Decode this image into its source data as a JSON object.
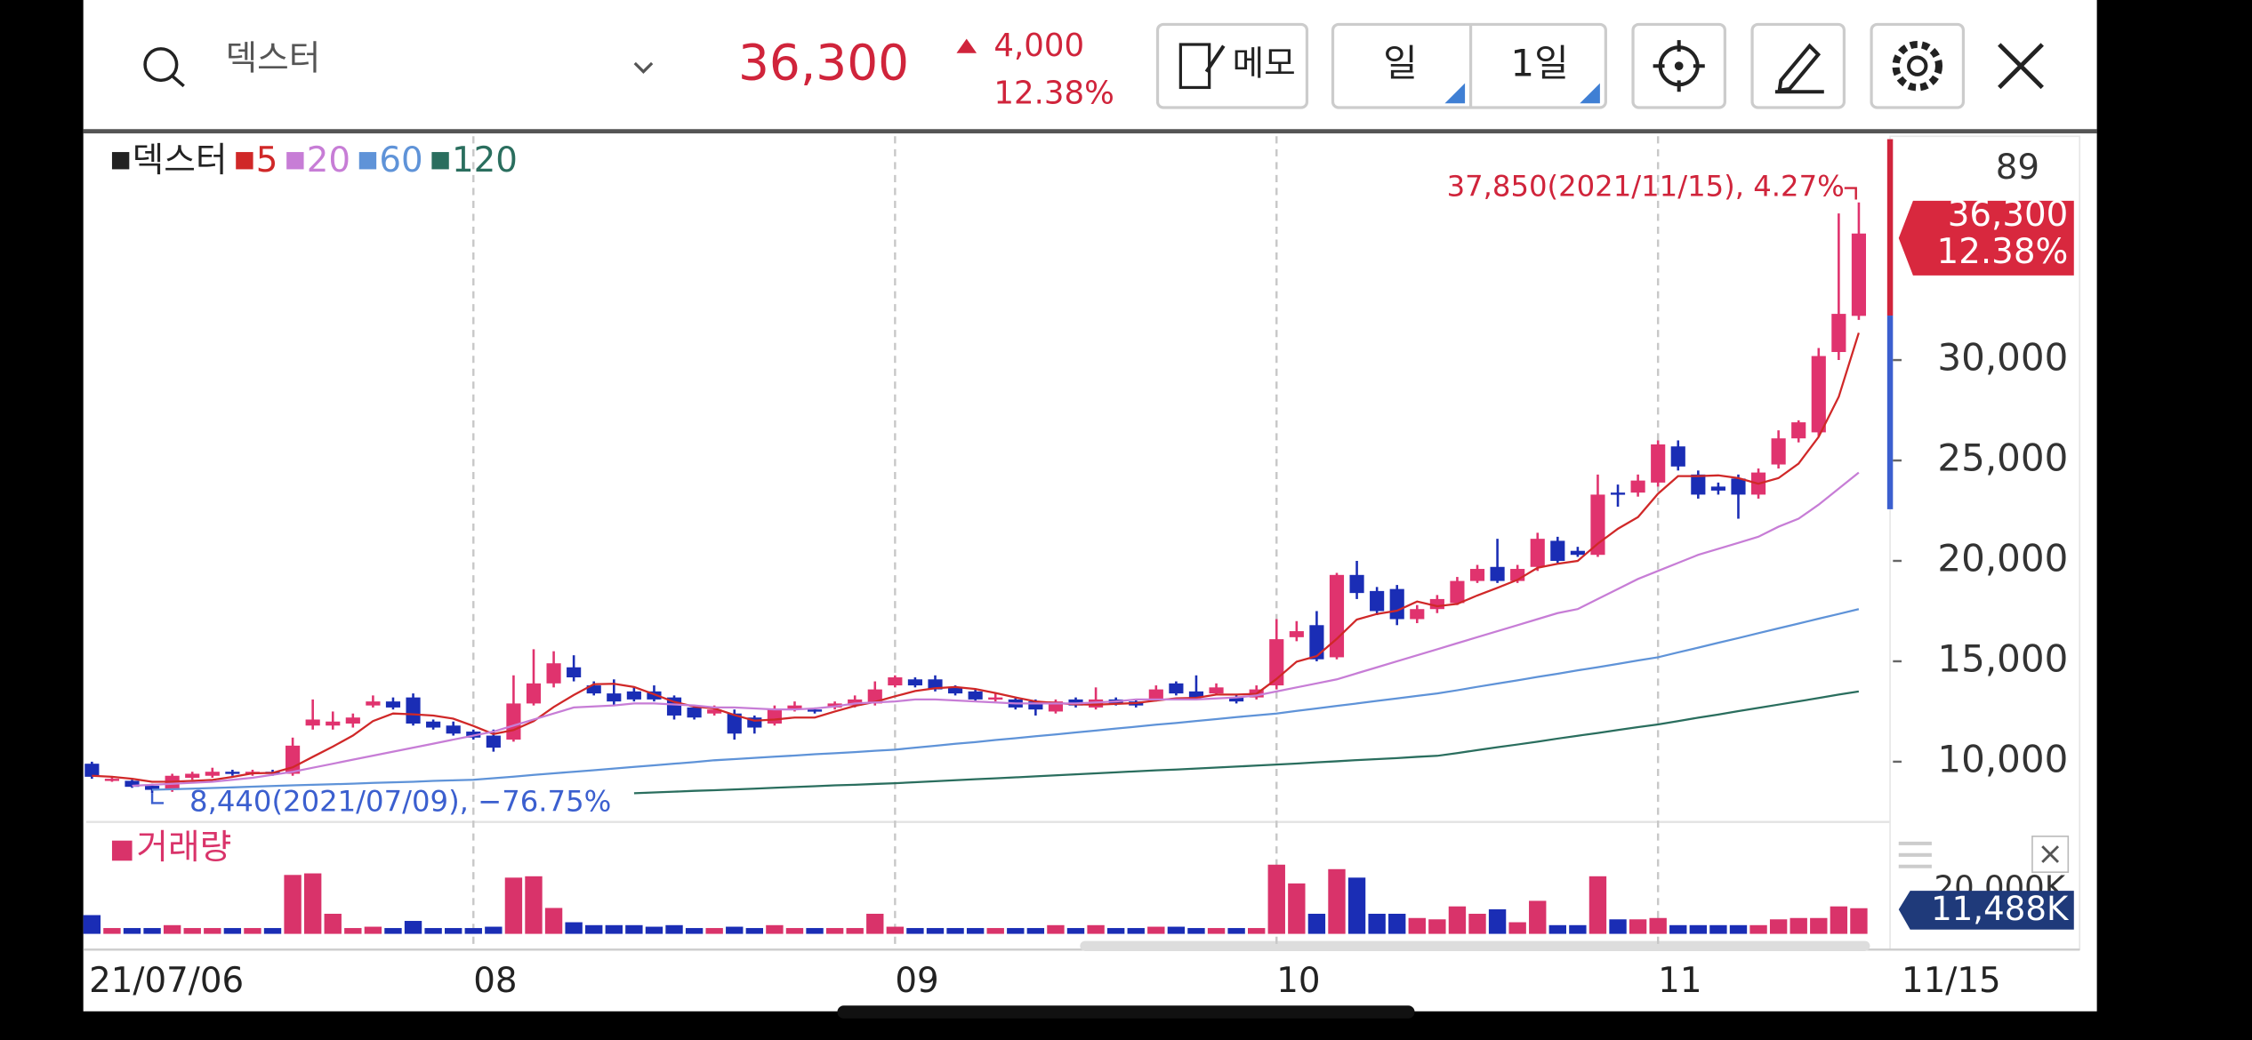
{
  "header": {
    "search": "덱스터",
    "price": "36,300",
    "change": "4,000",
    "change_pct": "12.38%",
    "memo": "메모",
    "period": "일",
    "interval": "1일"
  },
  "chart_data": {
    "type": "candlestick",
    "name": "덱스터",
    "color": "#222222",
    "up_color": "#e0336e",
    "down_color": "#1a2db5",
    "categories": [
      "21/07/06",
      null,
      null,
      null,
      null,
      null,
      null,
      null,
      null,
      null,
      null,
      null,
      null,
      null,
      null,
      null,
      null,
      null,
      null,
      "08",
      null,
      null,
      null,
      null,
      null,
      null,
      null,
      null,
      null,
      null,
      null,
      null,
      null,
      null,
      null,
      null,
      null,
      null,
      null,
      null,
      "09",
      null,
      null,
      null,
      null,
      null,
      null,
      null,
      null,
      null,
      null,
      null,
      null,
      null,
      null,
      null,
      null,
      null,
      null,
      "10",
      null,
      null,
      null,
      null,
      null,
      null,
      null,
      null,
      null,
      null,
      null,
      null,
      null,
      null,
      null,
      null,
      null,
      null,
      "11",
      null,
      null,
      null,
      null,
      null,
      null,
      null,
      null,
      null,
      "11/15"
    ],
    "open": [
      9900,
      9050,
      9050,
      8800,
      8600,
      9200,
      9300,
      9500,
      9400,
      9500,
      9400,
      11800,
      11800,
      11900,
      12800,
      13000,
      13200,
      12000,
      11800,
      11500,
      11300,
      11100,
      12900,
      13900,
      14700,
      13800,
      13400,
      13500,
      13500,
      13200,
      12700,
      12400,
      12400,
      12200,
      11900,
      12600,
      12600,
      12700,
      12800,
      12900,
      13800,
      14100,
      14100,
      13700,
      13500,
      13100,
      13100,
      13000,
      12500,
      13100,
      12700,
      13100,
      13000,
      13100,
      13900,
      13500,
      13400,
      13200,
      13200,
      13800,
      16200,
      16800,
      15200,
      19300,
      18500,
      18600,
      17100,
      17600,
      17900,
      19000,
      19700,
      19000,
      19700,
      21000,
      20500,
      20300,
      23400,
      23400,
      23900,
      25700,
      24300,
      23700,
      24100,
      23300,
      24800,
      26100,
      26400,
      30400,
      32200
    ],
    "high": [
      10000,
      9250,
      9100,
      8900,
      9400,
      9500,
      9700,
      9600,
      9600,
      9600,
      11200,
      13100,
      12500,
      12400,
      13300,
      13200,
      13400,
      12100,
      12000,
      11600,
      11600,
      14300,
      15600,
      15500,
      15300,
      14000,
      14100,
      13700,
      13800,
      13300,
      12800,
      12800,
      12600,
      12300,
      12800,
      13000,
      12700,
      13000,
      13300,
      14000,
      14300,
      14200,
      14300,
      13800,
      13600,
      13400,
      13200,
      13100,
      13100,
      13200,
      13700,
      13200,
      13100,
      13800,
      14000,
      14300,
      13900,
      13300,
      13800,
      17100,
      17000,
      17500,
      19400,
      20000,
      18700,
      18800,
      17800,
      18300,
      19200,
      19800,
      21100,
      19800,
      21400,
      21200,
      20700,
      24300,
      23800,
      24300,
      26000,
      26000,
      24500,
      23900,
      24300,
      24600,
      26500,
      27000,
      30600,
      37300,
      37850
    ],
    "low": [
      9150,
      9000,
      8700,
      8440,
      8500,
      9100,
      9200,
      9300,
      9300,
      9300,
      9300,
      11600,
      11600,
      11700,
      12700,
      12600,
      11800,
      11600,
      11300,
      11100,
      10500,
      11000,
      12800,
      13700,
      14000,
      13300,
      12800,
      13000,
      13000,
      12100,
      12100,
      12300,
      11100,
      11400,
      11800,
      12500,
      12400,
      12600,
      12700,
      12800,
      13700,
      13700,
      13500,
      13300,
      13000,
      13000,
      12600,
      12300,
      12400,
      12700,
      12600,
      12800,
      12700,
      13000,
      13300,
      13100,
      13300,
      12900,
      13100,
      13600,
      16000,
      15000,
      15100,
      18100,
      17300,
      16800,
      16900,
      17400,
      17800,
      18900,
      18900,
      18900,
      19500,
      19900,
      20200,
      20200,
      22700,
      23200,
      23700,
      24500,
      23100,
      23300,
      22100,
      23100,
      24600,
      25900,
      26200,
      30000,
      32000
    ],
    "close": [
      9250,
      9150,
      8750,
      8600,
      9300,
      9400,
      9500,
      9400,
      9500,
      9400,
      10800,
      12100,
      12000,
      12200,
      13000,
      12700,
      11900,
      11700,
      11400,
      11200,
      10700,
      12900,
      13900,
      14900,
      14200,
      13400,
      13000,
      13100,
      13100,
      12300,
      12200,
      12600,
      11400,
      11700,
      12600,
      12800,
      12500,
      12900,
      13100,
      13600,
      14200,
      13800,
      13600,
      13400,
      13100,
      13200,
      12700,
      12600,
      13000,
      12800,
      13100,
      12900,
      12800,
      13600,
      13400,
      13200,
      13700,
      13000,
      13600,
      16100,
      16500,
      15100,
      19300,
      18400,
      17500,
      17100,
      17600,
      18100,
      19000,
      19600,
      19000,
      19600,
      21100,
      20000,
      20300,
      23300,
      23300,
      24000,
      25800,
      24700,
      23300,
      23500,
      23300,
      24400,
      26100,
      26900,
      30200,
      32300,
      36300
    ],
    "series": [
      {
        "name": "5",
        "color": "#d02828",
        "values": [
          9300,
          9250,
          9150,
          9000,
          9010,
          9040,
          9090,
          9240,
          9420,
          9440,
          9720,
          10240,
          10760,
          11300,
          12020,
          12400,
          12360,
          12300,
          12140,
          11780,
          11380,
          11580,
          12020,
          12720,
          13320,
          13860,
          13880,
          13720,
          13360,
          12980,
          12740,
          12660,
          12320,
          12040,
          12100,
          12200,
          12200,
          12500,
          12780,
          12980,
          13260,
          13520,
          13660,
          13720,
          13620,
          13420,
          13200,
          13000,
          12920,
          12860,
          12840,
          12880,
          12920,
          13040,
          13160,
          13180,
          13340,
          13340,
          13380,
          14120,
          14980,
          15260,
          16120,
          17080,
          17360,
          17520,
          17980,
          17740,
          17860,
          18280,
          18660,
          19060,
          19660,
          19860,
          20000,
          20860,
          21600,
          22180,
          23340,
          24220,
          24220,
          24260,
          24120,
          23840,
          24120,
          24840,
          26180,
          28180,
          31360
        ]
      },
      {
        "name": "20",
        "color": "#c77dd6",
        "values": [
          null,
          null,
          8800,
          8850,
          8900,
          8950,
          9000,
          9100,
          9200,
          9350,
          9500,
          9700,
          9900,
          10100,
          10300,
          10500,
          10700,
          10900,
          11100,
          11300,
          11500,
          11800,
          12100,
          12400,
          12700,
          12750,
          12800,
          12900,
          12900,
          12850,
          12800,
          12700,
          12700,
          12650,
          12600,
          12600,
          12650,
          12750,
          12900,
          12950,
          13000,
          13100,
          13100,
          13050,
          13000,
          12950,
          12900,
          12900,
          12900,
          12900,
          12950,
          13000,
          13100,
          13100,
          13100,
          13100,
          13150,
          13200,
          13300,
          13500,
          13700,
          13900,
          14100,
          14400,
          14700,
          15000,
          15300,
          15600,
          15900,
          16200,
          16500,
          16800,
          17100,
          17400,
          17600,
          18100,
          18600,
          19100,
          19500,
          19900,
          20300,
          20600,
          20900,
          21200,
          21700,
          22100,
          22800,
          23600,
          24400
        ]
      },
      {
        "name": "60",
        "color": "#5f93d8",
        "values": [
          null,
          null,
          null,
          8600,
          8630,
          8660,
          8690,
          8720,
          8760,
          8790,
          8820,
          8850,
          8880,
          8910,
          8940,
          8970,
          9000,
          9040,
          9070,
          9100,
          9180,
          9260,
          9340,
          9420,
          9500,
          9580,
          9660,
          9740,
          9820,
          9900,
          9980,
          10070,
          10130,
          10190,
          10250,
          10310,
          10370,
          10420,
          10480,
          10540,
          10600,
          10700,
          10790,
          10890,
          10980,
          11080,
          11170,
          11270,
          11360,
          11460,
          11550,
          11650,
          11740,
          11840,
          11930,
          12030,
          12120,
          12220,
          12310,
          12400,
          12530,
          12650,
          12780,
          12900,
          13030,
          13150,
          13280,
          13400,
          13560,
          13730,
          13890,
          14050,
          14220,
          14380,
          14550,
          14710,
          14870,
          15040,
          15200,
          15440,
          15680,
          15920,
          16160,
          16400,
          16640,
          16880,
          17120,
          17360,
          17600
        ]
      },
      {
        "name": "120",
        "color": "#2a6e5e",
        "values": [
          null,
          null,
          null,
          null,
          null,
          null,
          null,
          null,
          null,
          null,
          null,
          null,
          null,
          null,
          null,
          null,
          null,
          null,
          null,
          null,
          null,
          null,
          null,
          null,
          null,
          null,
          null,
          8430,
          8470,
          8510,
          8550,
          8580,
          8620,
          8660,
          8700,
          8740,
          8780,
          8820,
          8850,
          8890,
          8930,
          8980,
          9030,
          9080,
          9130,
          9170,
          9220,
          9270,
          9320,
          9370,
          9420,
          9470,
          9520,
          9570,
          9610,
          9660,
          9710,
          9760,
          9810,
          9860,
          9910,
          9970,
          10020,
          10080,
          10130,
          10180,
          10240,
          10290,
          10430,
          10580,
          10720,
          10860,
          11000,
          11150,
          11290,
          11430,
          11580,
          11720,
          11860,
          12020,
          12190,
          12350,
          12520,
          12680,
          12840,
          13010,
          13170,
          13340,
          13500
        ]
      }
    ],
    "ylim": [
      7000,
      41000
    ],
    "yticks": [
      {
        "value": 10000,
        "label": "10,000"
      },
      {
        "value": 15000,
        "label": "15,000"
      },
      {
        "value": 20000,
        "label": "20,000"
      },
      {
        "value": 25000,
        "label": "25,000"
      },
      {
        "value": 30000,
        "label": "30,000"
      }
    ],
    "y_axis_top_label": "89",
    "high_label": "37,850(2021/11/15), 4.27%",
    "low_label": "8,440(2021/07/09), −76.75%",
    "last_price": "36,300",
    "last_change": "12.38%",
    "volume": {
      "name": "거래량",
      "color": "#d9336a",
      "values": [
        8400,
        2600,
        2600,
        2600,
        3900,
        2600,
        2600,
        2600,
        2600,
        2600,
        26400,
        27100,
        9000,
        2600,
        3200,
        2600,
        5800,
        2600,
        2600,
        2600,
        3200,
        25200,
        25800,
        11600,
        5200,
        3900,
        3900,
        3900,
        3200,
        3900,
        2600,
        2600,
        3200,
        2600,
        3900,
        2600,
        2600,
        2600,
        2600,
        9000,
        3200,
        2600,
        2600,
        2600,
        2600,
        2600,
        2600,
        2600,
        3900,
        2600,
        3900,
        2600,
        2600,
        3200,
        3200,
        2600,
        2600,
        2600,
        2600,
        31000,
        22600,
        9000,
        29000,
        25200,
        9000,
        9000,
        7100,
        6500,
        12300,
        9000,
        11000,
        5200,
        14800,
        3900,
        3900,
        25800,
        6500,
        6500,
        7100,
        3900,
        3900,
        3900,
        3900,
        3900,
        6500,
        7100,
        7100,
        12300,
        11488
      ],
      "ylim": [
        0,
        45000
      ],
      "yticks": [
        {
          "value": 20000,
          "label": "20,000K"
        }
      ],
      "last_label": "11,488K"
    }
  }
}
